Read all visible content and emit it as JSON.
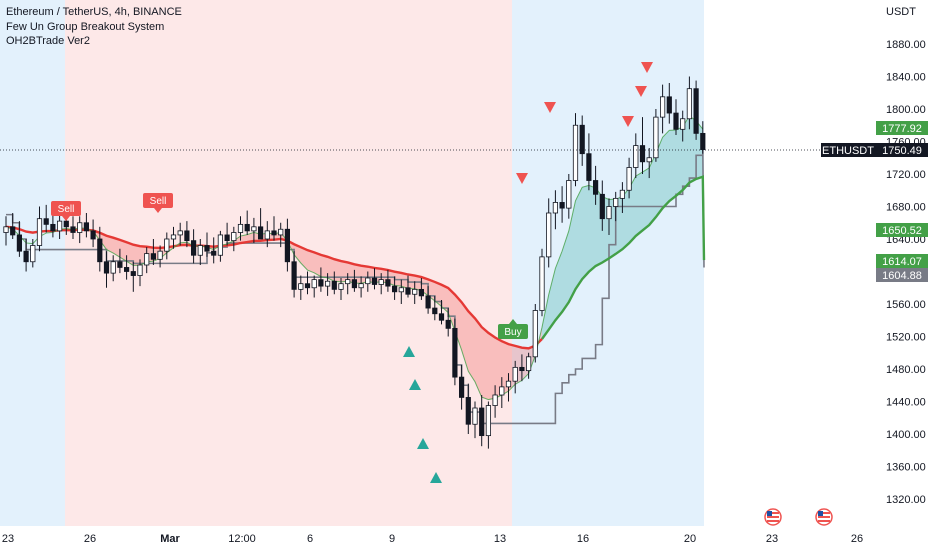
{
  "header": {
    "symbol_line": "Ethereum / TetherUS, 4h, BINANCE",
    "indicator1": "Few Un Group Breakout System",
    "indicator2": "OH2BTrade Ver2"
  },
  "price_axis": {
    "unit_label": "USDT",
    "ticks": [
      "1880.00",
      "1840.00",
      "1800.00",
      "1760.00",
      "1720.00",
      "1680.00",
      "1640.00",
      "1600.00",
      "1560.00",
      "1520.00",
      "1480.00",
      "1440.00",
      "1400.00",
      "1360.00",
      "1320.00"
    ]
  },
  "time_axis": {
    "ticks": [
      "23",
      "26",
      "Mar",
      "12:00",
      "6",
      "9",
      "13",
      "16",
      "20",
      "23",
      "26"
    ]
  },
  "badges": {
    "last_price_label": "ETHUSDT",
    "last_price": "1750.49",
    "upper_band": "1777.92",
    "lower_band": "1650.52",
    "ma_value": "1614.07",
    "trail_value": "1604.88"
  },
  "signals": {
    "sell_label": "Sell",
    "buy_label": "Buy"
  },
  "colors": {
    "up": "#26a69a",
    "down": "#ef5350",
    "candle": "#131722",
    "bear_zone": "#fde8e8",
    "bull_zone": "#e3f1fc",
    "ma_red": "#e53935",
    "ma_green": "#43a047",
    "trail": "#787b86"
  },
  "chart_data": {
    "type": "candlestick",
    "ylim": [
      1300,
      1900
    ],
    "last_price": 1750.49,
    "candles_ohlc": [
      [
        1648,
        1668,
        1632,
        1655
      ],
      [
        1655,
        1672,
        1640,
        1645
      ],
      [
        1645,
        1662,
        1618,
        1625
      ],
      [
        1625,
        1640,
        1600,
        1612
      ],
      [
        1612,
        1640,
        1605,
        1632
      ],
      [
        1632,
        1680,
        1625,
        1665
      ],
      [
        1665,
        1682,
        1648,
        1658
      ],
      [
        1658,
        1672,
        1642,
        1650
      ],
      [
        1650,
        1670,
        1640,
        1662
      ],
      [
        1662,
        1675,
        1645,
        1655
      ],
      [
        1655,
        1668,
        1640,
        1648
      ],
      [
        1648,
        1668,
        1635,
        1660
      ],
      [
        1660,
        1672,
        1642,
        1650
      ],
      [
        1650,
        1664,
        1630,
        1640
      ],
      [
        1640,
        1655,
        1600,
        1612
      ],
      [
        1612,
        1625,
        1580,
        1598
      ],
      [
        1598,
        1620,
        1588,
        1612
      ],
      [
        1612,
        1628,
        1598,
        1605
      ],
      [
        1605,
        1620,
        1590,
        1600
      ],
      [
        1600,
        1612,
        1575,
        1595
      ],
      [
        1595,
        1615,
        1582,
        1608
      ],
      [
        1608,
        1630,
        1598,
        1622
      ],
      [
        1622,
        1640,
        1608,
        1615
      ],
      [
        1615,
        1632,
        1605,
        1625
      ],
      [
        1625,
        1648,
        1615,
        1640
      ],
      [
        1640,
        1655,
        1628,
        1645
      ],
      [
        1645,
        1660,
        1632,
        1650
      ],
      [
        1650,
        1662,
        1630,
        1638
      ],
      [
        1638,
        1652,
        1610,
        1620
      ],
      [
        1620,
        1640,
        1608,
        1632
      ],
      [
        1632,
        1648,
        1618,
        1625
      ],
      [
        1625,
        1642,
        1610,
        1620
      ],
      [
        1620,
        1650,
        1612,
        1645
      ],
      [
        1645,
        1660,
        1632,
        1638
      ],
      [
        1638,
        1655,
        1625,
        1648
      ],
      [
        1648,
        1668,
        1638,
        1658
      ],
      [
        1658,
        1675,
        1645,
        1650
      ],
      [
        1650,
        1666,
        1635,
        1655
      ],
      [
        1655,
        1678,
        1642,
        1640
      ],
      [
        1640,
        1662,
        1630,
        1650
      ],
      [
        1650,
        1668,
        1638,
        1645
      ],
      [
        1645,
        1660,
        1630,
        1652
      ],
      [
        1652,
        1665,
        1600,
        1612
      ],
      [
        1612,
        1625,
        1568,
        1578
      ],
      [
        1578,
        1595,
        1565,
        1585
      ],
      [
        1585,
        1600,
        1572,
        1580
      ],
      [
        1580,
        1595,
        1568,
        1590
      ],
      [
        1590,
        1605,
        1575,
        1582
      ],
      [
        1582,
        1598,
        1570,
        1588
      ],
      [
        1588,
        1600,
        1572,
        1578
      ],
      [
        1578,
        1592,
        1565,
        1585
      ],
      [
        1585,
        1598,
        1572,
        1590
      ],
      [
        1590,
        1602,
        1575,
        1580
      ],
      [
        1580,
        1594,
        1568,
        1585
      ],
      [
        1585,
        1600,
        1575,
        1592
      ],
      [
        1592,
        1604,
        1578,
        1584
      ],
      [
        1584,
        1598,
        1572,
        1590
      ],
      [
        1590,
        1602,
        1575,
        1582
      ],
      [
        1582,
        1594,
        1565,
        1575
      ],
      [
        1575,
        1590,
        1560,
        1580
      ],
      [
        1580,
        1595,
        1568,
        1572
      ],
      [
        1572,
        1588,
        1560,
        1578
      ],
      [
        1578,
        1592,
        1565,
        1570
      ],
      [
        1570,
        1582,
        1548,
        1555
      ],
      [
        1555,
        1570,
        1540,
        1548
      ],
      [
        1548,
        1565,
        1535,
        1540
      ],
      [
        1540,
        1555,
        1520,
        1530
      ],
      [
        1530,
        1542,
        1460,
        1470
      ],
      [
        1470,
        1485,
        1430,
        1445
      ],
      [
        1445,
        1462,
        1400,
        1412
      ],
      [
        1412,
        1440,
        1395,
        1432
      ],
      [
        1432,
        1448,
        1385,
        1398
      ],
      [
        1398,
        1440,
        1382,
        1435
      ],
      [
        1435,
        1460,
        1420,
        1448
      ],
      [
        1448,
        1470,
        1432,
        1458
      ],
      [
        1458,
        1475,
        1440,
        1465
      ],
      [
        1465,
        1490,
        1450,
        1482
      ],
      [
        1482,
        1498,
        1465,
        1478
      ],
      [
        1478,
        1500,
        1468,
        1495
      ],
      [
        1495,
        1560,
        1488,
        1552
      ],
      [
        1552,
        1628,
        1545,
        1618
      ],
      [
        1618,
        1690,
        1605,
        1672
      ],
      [
        1672,
        1700,
        1652,
        1685
      ],
      [
        1685,
        1705,
        1660,
        1678
      ],
      [
        1678,
        1720,
        1665,
        1712
      ],
      [
        1712,
        1795,
        1705,
        1780
      ],
      [
        1780,
        1792,
        1730,
        1745
      ],
      [
        1745,
        1770,
        1700,
        1712
      ],
      [
        1712,
        1730,
        1682,
        1695
      ],
      [
        1695,
        1712,
        1650,
        1665
      ],
      [
        1665,
        1690,
        1645,
        1680
      ],
      [
        1680,
        1698,
        1662,
        1690
      ],
      [
        1690,
        1710,
        1672,
        1700
      ],
      [
        1700,
        1740,
        1690,
        1728
      ],
      [
        1728,
        1770,
        1715,
        1755
      ],
      [
        1755,
        1790,
        1720,
        1735
      ],
      [
        1735,
        1752,
        1715,
        1740
      ],
      [
        1740,
        1800,
        1735,
        1790
      ],
      [
        1790,
        1830,
        1770,
        1815
      ],
      [
        1815,
        1832,
        1782,
        1795
      ],
      [
        1795,
        1812,
        1768,
        1775
      ],
      [
        1775,
        1798,
        1760,
        1788
      ],
      [
        1788,
        1840,
        1775,
        1825
      ],
      [
        1825,
        1835,
        1762,
        1770
      ],
      [
        1770,
        1785,
        1745,
        1750
      ]
    ],
    "upper_band": 1777.92,
    "lower_band": 1650.52,
    "ma_value": 1614.07,
    "trail_value": 1604.88,
    "sell_signals": [
      {
        "x": "24",
        "price": 1680
      },
      {
        "x": "28",
        "price": 1690
      }
    ],
    "buy_signals": [
      {
        "x": "13",
        "price": 1545
      }
    ],
    "ylabel": "USDT",
    "grid": false,
    "legend": "top-left"
  }
}
